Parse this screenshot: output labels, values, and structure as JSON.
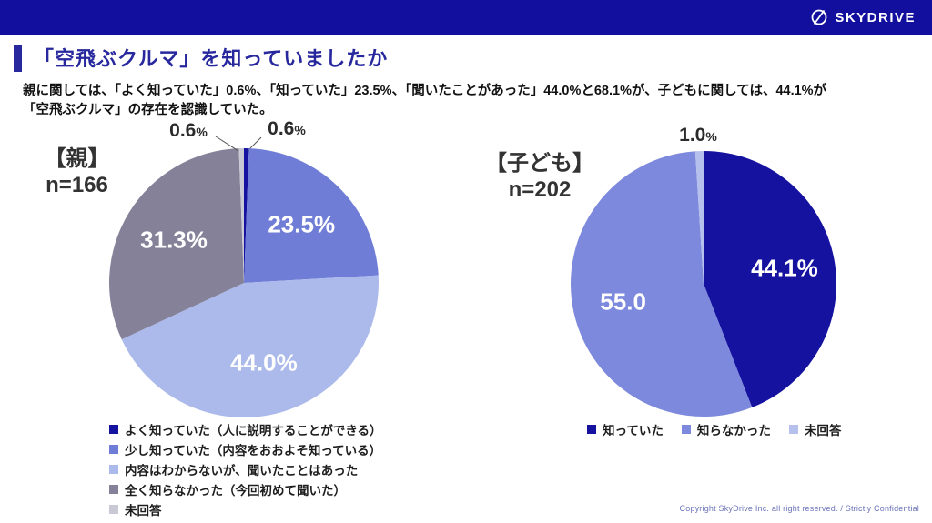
{
  "header": {
    "logo_text": "SKYDRIVE"
  },
  "title": "「空飛ぶクルマ」を知っていましたか",
  "body": {
    "line1": "親に関しては、「よく知っていた」0.6%、「知っていた」23.5%、「聞いたことがあった」44.0%と68.1%が、子どもに関しては、44.1%が",
    "line2": "「空飛ぶクルマ」の存在を認識していた。"
  },
  "footer": {
    "copyright": "Copyright SkyDrive Inc. all right reserved. / Strictly Confidential"
  },
  "colors": {
    "header_bar": "#120F9E",
    "title_navy": "#28289E",
    "navy": "#1512A0",
    "medium_blue": "#6F7DD6",
    "light_periwinkle": "#ACBAEB",
    "gray_purple": "#848198",
    "pale_gray": "#C9C9D6",
    "child_periwinkle": "#7D89DC",
    "child_pale": "#B5C0EC"
  },
  "chart_data": [
    {
      "type": "pie",
      "title": "【親】",
      "n_label": "n=166",
      "categories": [
        "よく知っていた（人に説明することができる）",
        "少し知っていた（内容をおおよそ知っている）",
        "内容はわからないが、聞いたことはあった",
        "全く知らなかった（今回初めて聞いた）",
        "未回答"
      ],
      "values": [
        0.6,
        23.5,
        44.0,
        31.3,
        0.6
      ],
      "slice_labels": [
        "0.6%",
        "23.5%",
        "44.0%",
        "31.3%",
        "0.6%"
      ],
      "colors": [
        "#1512A0",
        "#6F7DD6",
        "#ACBAEB",
        "#848198",
        "#C9C9D6"
      ],
      "start_angle_deg": 0,
      "direction": "clockwise",
      "legend_position": "bottom-left-vertical"
    },
    {
      "type": "pie",
      "title": "【子ども】",
      "n_label": "n=202",
      "categories": [
        "知っていた",
        "知らなかった",
        "未回答"
      ],
      "values": [
        44.1,
        55.0,
        1.0
      ],
      "slice_labels": [
        "44.1%",
        "55.0",
        "1.0%"
      ],
      "colors": [
        "#1512A0",
        "#7D89DC",
        "#B5C0EC"
      ],
      "start_angle_deg": 0,
      "direction": "clockwise",
      "legend_position": "bottom-horizontal"
    }
  ]
}
